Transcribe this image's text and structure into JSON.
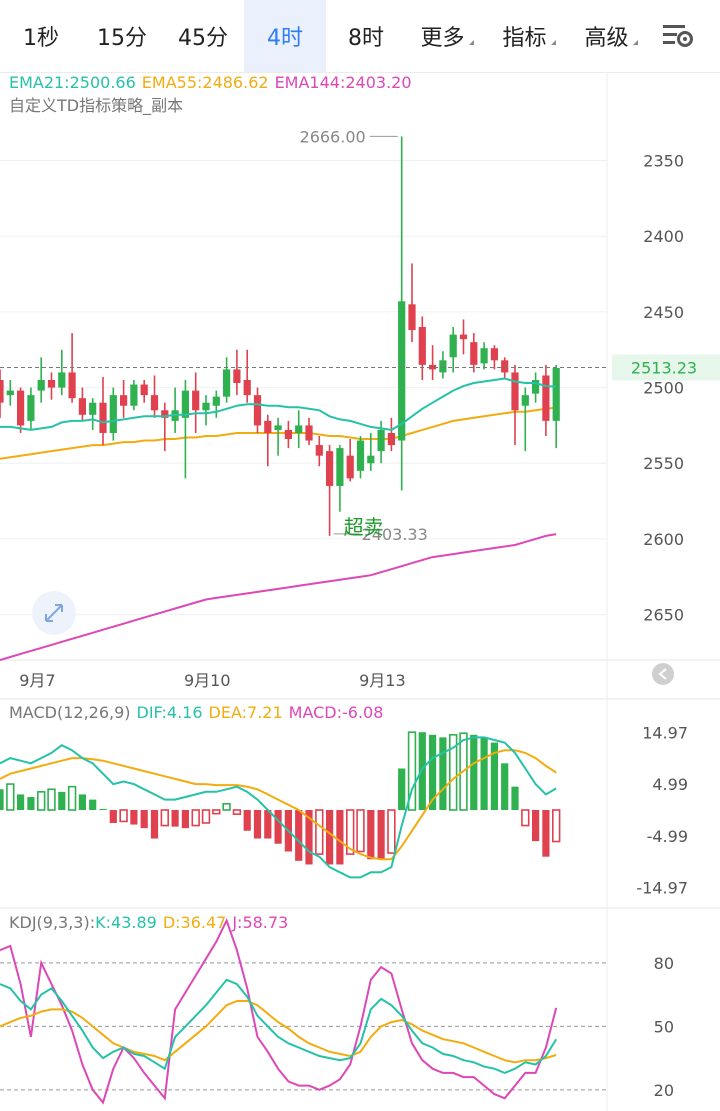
{
  "tabs": [
    {
      "label": "1秒",
      "active": false,
      "dropdown": false
    },
    {
      "label": "15分",
      "active": false,
      "dropdown": false
    },
    {
      "label": "45分",
      "active": false,
      "dropdown": false
    },
    {
      "label": "4时",
      "active": true,
      "dropdown": false
    },
    {
      "label": "8时",
      "active": false,
      "dropdown": false
    },
    {
      "label": "更多",
      "active": false,
      "dropdown": true
    },
    {
      "label": "指标",
      "active": false,
      "dropdown": true
    },
    {
      "label": "高级",
      "active": false,
      "dropdown": true
    }
  ],
  "icons": {
    "settings": "chart-settings-icon",
    "expand": "expand-arrows-icon",
    "collapse": "collapse-left-icon"
  },
  "colors": {
    "up": "#2fb14f",
    "down": "#e0414f",
    "ema21": "#26c2a8",
    "ema55": "#f2ac10",
    "ema144": "#dd47b6",
    "accent": "#2f7cf6"
  },
  "main": {
    "ema21_label": "EMA21:2500.66",
    "ema55_label": "EMA55:2486.62",
    "ema144_label": "EMA144:2403.20",
    "strategy": "自定义TD指标策略_副本",
    "y_ticks": [
      "2650",
      "2600",
      "2550",
      "2500",
      "2450",
      "2400",
      "2350"
    ],
    "last_price": "2513.23",
    "high_label": "2666.00",
    "low_label": "2403.33",
    "signal_label": "超卖"
  },
  "x_labels": [
    "9月7",
    "9月10",
    "9月13"
  ],
  "macd": {
    "label": "MACD(12,26,9)",
    "dif_label": "DIF:4.16",
    "dea_label": "DEA:7.21",
    "macd_label": "MACD:-6.08",
    "y_ticks": [
      "14.97",
      "4.99",
      "-4.99",
      "-14.97"
    ]
  },
  "kdj": {
    "label": "KDJ(9,3,3):",
    "k_label": "K:43.89",
    "d_label": "D:36.47",
    "j_label": "J:58.73",
    "y_ticks": [
      "80",
      "50",
      "20"
    ]
  },
  "chart_data": [
    {
      "type": "candlestick",
      "interval": "4时",
      "ylim": [
        2320,
        2690
      ],
      "yticks": [
        2350,
        2400,
        2450,
        2500,
        2550,
        2600,
        2650
      ],
      "candles": [
        [
          2505,
          2512,
          2480,
          2490
        ],
        [
          2495,
          2505,
          2488,
          2498
        ],
        [
          2498,
          2500,
          2470,
          2475
        ],
        [
          2478,
          2500,
          2472,
          2495
        ],
        [
          2498,
          2520,
          2490,
          2505
        ],
        [
          2505,
          2510,
          2492,
          2500
        ],
        [
          2500,
          2525,
          2495,
          2510
        ],
        [
          2510,
          2536,
          2490,
          2493
        ],
        [
          2493,
          2500,
          2478,
          2482
        ],
        [
          2482,
          2493,
          2472,
          2490
        ],
        [
          2490,
          2507,
          2462,
          2470
        ],
        [
          2470,
          2500,
          2465,
          2495
        ],
        [
          2495,
          2505,
          2480,
          2488
        ],
        [
          2488,
          2505,
          2485,
          2502
        ],
        [
          2502,
          2505,
          2490,
          2495
        ],
        [
          2495,
          2508,
          2480,
          2485
        ],
        [
          2485,
          2490,
          2458,
          2480
        ],
        [
          2478,
          2500,
          2470,
          2485
        ],
        [
          2480,
          2505,
          2440,
          2498
        ],
        [
          2498,
          2510,
          2470,
          2485
        ],
        [
          2485,
          2495,
          2475,
          2490
        ],
        [
          2488,
          2498,
          2480,
          2494
        ],
        [
          2494,
          2520,
          2490,
          2512
        ],
        [
          2512,
          2525,
          2495,
          2503
        ],
        [
          2505,
          2525,
          2490,
          2495
        ],
        [
          2495,
          2500,
          2470,
          2475
        ],
        [
          2478,
          2482,
          2448,
          2470
        ],
        [
          2472,
          2480,
          2455,
          2475
        ],
        [
          2472,
          2478,
          2460,
          2466
        ],
        [
          2470,
          2485,
          2460,
          2475
        ],
        [
          2475,
          2480,
          2462,
          2465
        ],
        [
          2462,
          2468,
          2448,
          2455
        ],
        [
          2458,
          2462,
          2402,
          2435
        ],
        [
          2435,
          2462,
          2418,
          2460
        ],
        [
          2455,
          2466,
          2438,
          2440
        ],
        [
          2445,
          2468,
          2440,
          2465
        ],
        [
          2450,
          2470,
          2445,
          2455
        ],
        [
          2458,
          2478,
          2450,
          2472
        ],
        [
          2470,
          2480,
          2458,
          2462
        ],
        [
          2465,
          2666,
          2432,
          2557
        ],
        [
          2555,
          2582,
          2530,
          2538
        ],
        [
          2540,
          2547,
          2505,
          2515
        ],
        [
          2515,
          2528,
          2505,
          2512
        ],
        [
          2510,
          2524,
          2506,
          2518
        ],
        [
          2520,
          2540,
          2510,
          2535
        ],
        [
          2535,
          2545,
          2522,
          2532
        ],
        [
          2530,
          2536,
          2510,
          2515
        ],
        [
          2516,
          2530,
          2512,
          2526
        ],
        [
          2526,
          2528,
          2512,
          2518
        ],
        [
          2518,
          2520,
          2506,
          2510
        ],
        [
          2510,
          2515,
          2462,
          2485
        ],
        [
          2488,
          2500,
          2458,
          2495
        ],
        [
          2496,
          2510,
          2490,
          2505
        ],
        [
          2508,
          2515,
          2468,
          2478
        ],
        [
          2478,
          2515,
          2460,
          2513
        ]
      ],
      "ema21": [
        2474,
        2474,
        2473,
        2472,
        2473,
        2474,
        2477,
        2478,
        2478,
        2479,
        2477,
        2478,
        2479,
        2480,
        2481,
        2481,
        2481,
        2482,
        2482,
        2483,
        2483,
        2484,
        2486,
        2488,
        2489,
        2489,
        2488,
        2488,
        2487,
        2487,
        2486,
        2485,
        2481,
        2479,
        2478,
        2476,
        2474,
        2473,
        2472,
        2476,
        2481,
        2486,
        2490,
        2494,
        2498,
        2501,
        2503,
        2504,
        2505,
        2506,
        2504,
        2503,
        2503,
        2501,
        2500.66
      ],
      "ema55": [
        2453,
        2454,
        2455,
        2456,
        2457,
        2458,
        2459,
        2460,
        2461,
        2462,
        2462,
        2463,
        2464,
        2464,
        2465,
        2465,
        2466,
        2466,
        2467,
        2467,
        2468,
        2468,
        2469,
        2470,
        2470,
        2470,
        2470,
        2470,
        2470,
        2470,
        2470,
        2469,
        2468,
        2468,
        2467,
        2466,
        2466,
        2466,
        2466,
        2468,
        2470,
        2472,
        2474,
        2476,
        2478,
        2479,
        2480,
        2481,
        2482,
        2483,
        2484,
        2484,
        2485,
        2486,
        2486.62
      ],
      "ema144": [
        2320,
        2322,
        2324,
        2326,
        2328,
        2330,
        2332,
        2334,
        2336,
        2338,
        2340,
        2342,
        2344,
        2346,
        2348,
        2350,
        2352,
        2354,
        2356,
        2358,
        2360,
        2361,
        2362,
        2363,
        2364,
        2365,
        2366,
        2367,
        2368,
        2369,
        2370,
        2371,
        2372,
        2373,
        2374,
        2375,
        2376,
        2378,
        2380,
        2382,
        2384,
        2386,
        2388,
        2389,
        2390,
        2391,
        2392,
        2393,
        2394,
        2395,
        2396,
        2398,
        2400,
        2402,
        2403.2
      ],
      "horizontal_line": 2513.23,
      "annotations": [
        {
          "text": "2666.00",
          "value": 2666.0
        },
        {
          "text": "2403.33",
          "value": 2403.33
        },
        {
          "text": "超卖",
          "value": 2402
        }
      ],
      "x_labels": [
        {
          "text": "9月7",
          "index": 4
        },
        {
          "text": "9月10",
          "index": 20
        },
        {
          "text": "9月13",
          "index": 37
        }
      ]
    },
    {
      "type": "bar-line",
      "name": "MACD(12,26,9)",
      "ylim": [
        -16,
        16
      ],
      "yticks": [
        14.97,
        4.99,
        -4.99,
        -14.97
      ],
      "macd": [
        4,
        5,
        3,
        2.5,
        3.5,
        4,
        3.5,
        4.5,
        3,
        2,
        0.2,
        -2.5,
        -2.2,
        -2.8,
        -3.5,
        -5.5,
        -3,
        -3.2,
        -3.5,
        -3,
        -2.5,
        -0.7,
        1.2,
        -0.8,
        -4,
        -5.5,
        -5.5,
        -6.5,
        -8,
        -9.8,
        -10.5,
        -8.5,
        -10.5,
        -10.5,
        -8.5,
        -8,
        -9.5,
        -9.5,
        -8.3,
        8,
        15,
        15,
        14.5,
        14,
        14.5,
        14.8,
        14.5,
        14,
        13,
        9,
        4.5,
        -3,
        -6,
        -9,
        -6.08
      ],
      "dif": [
        9,
        10,
        9.5,
        9,
        10,
        11,
        12.5,
        11.5,
        10,
        9,
        7,
        5,
        5.5,
        5,
        4,
        3,
        2,
        2,
        2.5,
        3,
        3.5,
        3.5,
        4,
        4.5,
        3.5,
        2,
        0,
        -2,
        -4,
        -6,
        -8,
        -9,
        -11,
        -12,
        -13,
        -13,
        -12,
        -12,
        -11,
        -3,
        4,
        8,
        10,
        11,
        12,
        13.5,
        14,
        14,
        13.5,
        13,
        11,
        8,
        5,
        3,
        4.16
      ],
      "dea": [
        6,
        7,
        7.5,
        8,
        8.5,
        9,
        9.5,
        10,
        10,
        9.8,
        9.5,
        9,
        8.5,
        8,
        7.5,
        7,
        6.5,
        6,
        5.5,
        5,
        5,
        4.8,
        4.8,
        4.8,
        4.5,
        4,
        3,
        2,
        1,
        0,
        -1.5,
        -3,
        -4.5,
        -6,
        -7.5,
        -8.5,
        -9.2,
        -9.5,
        -9.5,
        -7,
        -4,
        -1,
        2,
        4,
        6,
        7.5,
        9,
        10,
        11,
        11.5,
        11.5,
        11,
        10,
        8.5,
        7.21
      ]
    },
    {
      "type": "line",
      "name": "KDJ(9,3,3)",
      "ylim": [
        10,
        105
      ],
      "yticks": [
        80,
        50,
        20
      ],
      "k": [
        70,
        68,
        62,
        58,
        65,
        68,
        62,
        55,
        48,
        40,
        35,
        38,
        40,
        37,
        36,
        33,
        30,
        45,
        50,
        55,
        60,
        66,
        72,
        70,
        64,
        55,
        50,
        45,
        42,
        40,
        38,
        36,
        35,
        34,
        35,
        42,
        58,
        63,
        60,
        55,
        48,
        42,
        40,
        37,
        36,
        34,
        33,
        31,
        30,
        28,
        30,
        33,
        32,
        36,
        43.89
      ],
      "d": [
        50,
        52,
        54,
        55,
        57,
        58,
        58,
        57,
        54,
        50,
        46,
        42,
        40,
        38,
        37,
        36,
        34,
        38,
        42,
        46,
        50,
        55,
        60,
        62,
        62,
        60,
        56,
        52,
        49,
        45,
        42,
        40,
        38,
        37,
        36,
        38,
        45,
        50,
        52,
        53,
        51,
        48,
        46,
        44,
        43,
        42,
        40,
        38,
        36,
        34,
        33,
        34,
        34,
        35,
        36.47
      ],
      "j": [
        86,
        88,
        70,
        45,
        80,
        70,
        60,
        48,
        32,
        20,
        14,
        30,
        40,
        35,
        28,
        22,
        16,
        58,
        66,
        74,
        82,
        90,
        100,
        86,
        68,
        45,
        38,
        30,
        24,
        22,
        22,
        20,
        22,
        25,
        32,
        50,
        72,
        78,
        75,
        58,
        42,
        34,
        30,
        28,
        28,
        26,
        26,
        22,
        18,
        16,
        22,
        28,
        28,
        40,
        58.73
      ]
    }
  ]
}
